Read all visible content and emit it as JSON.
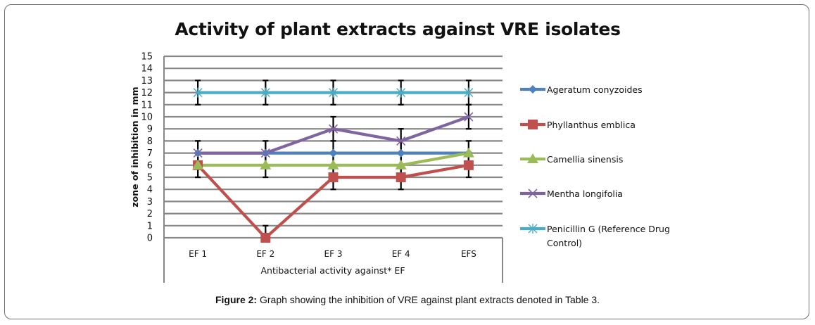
{
  "caption": {
    "label": "Figure 2:",
    "text": " Graph showing the inhibition of VRE against plant extracts denoted in Table 3."
  },
  "chart_data": {
    "type": "line",
    "title": "Activity of plant extracts against VRE isolates",
    "xlabel": "Antibacterial activity against* EF",
    "ylabel": "zone of inhibition in mm",
    "ylim": [
      0,
      15
    ],
    "yticks": [
      0,
      1,
      2,
      3,
      4,
      5,
      6,
      7,
      8,
      9,
      10,
      11,
      12,
      13,
      14,
      15
    ],
    "grid": true,
    "legend_position": "right",
    "categories": [
      "EF 1",
      "EF 2",
      "EF 3",
      "EF 4",
      "EFS"
    ],
    "series": [
      {
        "name": "Ageratum conyzoides",
        "color": "#4F81BD",
        "marker": "diamond",
        "values": [
          7,
          7,
          7,
          7,
          7
        ],
        "error": [
          1,
          1,
          1,
          1,
          1
        ]
      },
      {
        "name": "Phyllanthus  emblica",
        "color": "#C0504D",
        "marker": "square",
        "values": [
          6,
          0,
          5,
          5,
          6
        ],
        "error": [
          1,
          1,
          1,
          1,
          1
        ]
      },
      {
        "name": "Camellia sinensis",
        "color": "#9BBB59",
        "marker": "triangle",
        "values": [
          6,
          6,
          6,
          6,
          7
        ],
        "error": [
          1,
          1,
          1,
          1,
          1
        ]
      },
      {
        "name": "Mentha longifolia",
        "color": "#8064A2",
        "marker": "x",
        "values": [
          7,
          7,
          9,
          8,
          10
        ],
        "error": [
          1,
          1,
          1,
          1,
          1
        ]
      },
      {
        "name": "Penicillin G (Reference Drug Control)",
        "color": "#4BACC6",
        "marker": "star",
        "values": [
          12,
          12,
          12,
          12,
          12
        ],
        "error": [
          1,
          1,
          1,
          1,
          1
        ]
      }
    ],
    "legend_lines": [
      [
        "Ageratum conyzoides"
      ],
      [
        "Phyllanthus  emblica"
      ],
      [
        "Camellia sinensis"
      ],
      [
        "Mentha longifolia"
      ],
      [
        "Penicillin G (Reference Drug",
        "Control)"
      ]
    ]
  }
}
